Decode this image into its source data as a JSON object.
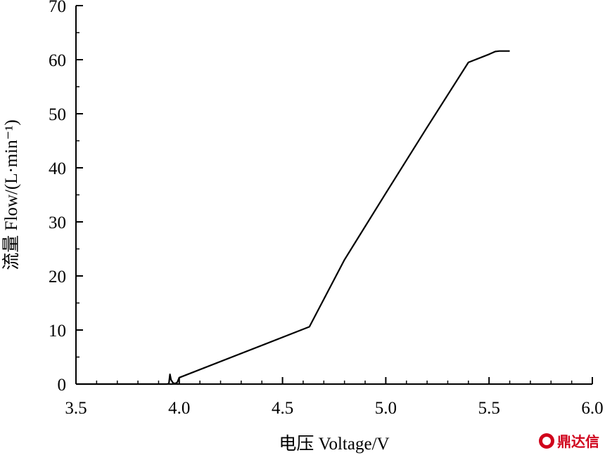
{
  "chart_data": {
    "type": "line",
    "xlabel": "电压 Voltage/V",
    "ylabel": "流量 Flow/(L·min⁻¹)",
    "xlim": [
      3.5,
      6.0
    ],
    "ylim": [
      0,
      70
    ],
    "x_ticks": [
      "3.5",
      "4.0",
      "4.5",
      "5.0",
      "5.5",
      "6.0"
    ],
    "y_ticks": [
      "0",
      "10",
      "20",
      "30",
      "40",
      "50",
      "60",
      "70"
    ],
    "grid": false,
    "series": [
      {
        "color": "#000000",
        "x": [
          3.5,
          3.94,
          3.95,
          3.955,
          3.96,
          3.97,
          3.98,
          3.99,
          4.0,
          4.63,
          4.8,
          5.0,
          5.2,
          5.4,
          5.5,
          5.53,
          5.55,
          5.6
        ],
        "y": [
          0,
          0,
          0.1,
          1.8,
          0.8,
          0.2,
          0.1,
          0.3,
          1.2,
          10.6,
          23.0,
          35.3,
          47.5,
          59.5,
          61.0,
          61.5,
          61.6,
          61.6
        ]
      }
    ]
  },
  "watermark": {
    "text": "鼎达信",
    "color": "#d0021b"
  }
}
